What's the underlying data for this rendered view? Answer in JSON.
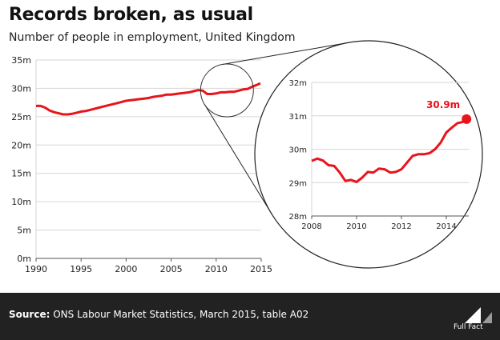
{
  "title": "Records broken, as usual",
  "subtitle": "Number of people in employment, United Kingdom",
  "footer": {
    "source_label": "Source:",
    "source_text": " ONS Labour Market Statistics, March 2015, table A02",
    "logo_text": "Full Fact"
  },
  "colors": {
    "line": "#e8141c",
    "footer_bg": "#222222"
  },
  "chart_data": [
    {
      "type": "line",
      "title": "",
      "xlabel": "",
      "ylabel": "",
      "xlim": [
        1990,
        2015
      ],
      "ylim": [
        0,
        35
      ],
      "unit": "m",
      "grid": "horizontal",
      "xticks": [
        "1990",
        "1995",
        "2000",
        "2005",
        "2010",
        "2015"
      ],
      "yticks": [
        "0m",
        "5m",
        "10m",
        "15m",
        "20m",
        "25m",
        "30m",
        "35m"
      ],
      "series": [
        {
          "x": [
            1990,
            1990.5,
            1991,
            1991.5,
            1992,
            1992.5,
            1993,
            1993.5,
            1994,
            1994.5,
            1995,
            1995.5,
            1996,
            1996.5,
            1997,
            1997.5,
            1998,
            1998.5,
            1999,
            1999.5,
            2000,
            2000.5,
            2001,
            2001.5,
            2002,
            2002.5,
            2003,
            2003.5,
            2004,
            2004.5,
            2005,
            2005.5,
            2006,
            2006.5,
            2007,
            2007.5,
            2008,
            2008.5,
            2009,
            2009.5,
            2010,
            2010.5,
            2011,
            2011.5,
            2012,
            2012.5,
            2013,
            2013.5,
            2014,
            2014.5,
            2014.9
          ],
          "y": [
            26.9,
            26.9,
            26.6,
            26.1,
            25.8,
            25.6,
            25.4,
            25.4,
            25.5,
            25.7,
            25.9,
            26.0,
            26.2,
            26.4,
            26.6,
            26.8,
            27.0,
            27.2,
            27.4,
            27.6,
            27.8,
            27.9,
            28.0,
            28.1,
            28.2,
            28.3,
            28.5,
            28.6,
            28.7,
            28.9,
            28.9,
            29.0,
            29.1,
            29.2,
            29.3,
            29.5,
            29.7,
            29.6,
            29.0,
            29.0,
            29.1,
            29.3,
            29.3,
            29.4,
            29.4,
            29.6,
            29.8,
            29.9,
            30.3,
            30.6,
            30.9
          ]
        }
      ]
    },
    {
      "type": "line",
      "title": "",
      "xlabel": "",
      "ylabel": "",
      "xlim": [
        2008,
        2015
      ],
      "ylim": [
        28,
        32
      ],
      "unit": "m",
      "grid": "horizontal",
      "xticks": [
        "2008",
        "2010",
        "2012",
        "2014"
      ],
      "yticks": [
        "28m",
        "29m",
        "30m",
        "31m",
        "32m"
      ],
      "annotation": "30.9m",
      "series": [
        {
          "x": [
            2008,
            2008.25,
            2008.5,
            2008.75,
            2009,
            2009.25,
            2009.5,
            2009.75,
            2010,
            2010.25,
            2010.5,
            2010.75,
            2011,
            2011.25,
            2011.5,
            2011.75,
            2012,
            2012.25,
            2012.5,
            2012.75,
            2013,
            2013.25,
            2013.5,
            2013.75,
            2014,
            2014.25,
            2014.5,
            2014.75,
            2014.9
          ],
          "y": [
            29.65,
            29.72,
            29.66,
            29.52,
            29.5,
            29.3,
            29.05,
            29.08,
            29.02,
            29.15,
            29.32,
            29.3,
            29.42,
            29.4,
            29.3,
            29.32,
            29.4,
            29.6,
            29.8,
            29.85,
            29.85,
            29.88,
            30.0,
            30.2,
            30.5,
            30.65,
            30.78,
            30.82,
            30.9
          ]
        }
      ]
    }
  ]
}
